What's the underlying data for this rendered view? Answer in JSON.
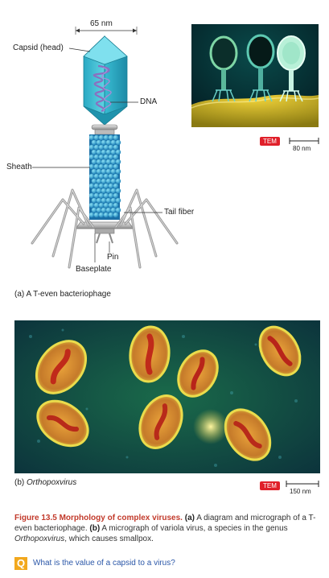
{
  "diagram_a": {
    "dimension_label": "65 nm",
    "labels": {
      "capsid": "Capsid (head)",
      "dna": "DNA",
      "sheath": "Sheath",
      "tail_fiber": "Tail fiber",
      "pin": "Pin",
      "baseplate": "Baseplate"
    },
    "part_title": "(a) A T-even bacteriophage"
  },
  "micrograph_a": {
    "tem_label": "TEM",
    "scale_label": "80 nm"
  },
  "micrograph_b": {
    "tem_label": "TEM",
    "scale_label": "150 nm",
    "part_prefix": "(b) ",
    "part_name": "Orthopoxvirus"
  },
  "caption": {
    "figure_number": "Figure 13.5",
    "title": "Morphology of complex viruses.",
    "a_marker": "(a)",
    "a_text": " A diagram and micrograph of a T-even bacteriophage. ",
    "b_marker": "(b)",
    "b_text": " A micrograph of variola virus, a species in the genus ",
    "genus": "Orthopoxvirus",
    "b_text_end": ", which causes smallpox."
  },
  "question": {
    "badge": "Q",
    "text": "What is the value of a capsid to a virus?"
  },
  "colors": {
    "capsid": "#3fc4d8",
    "sheath": "#2fa6cf",
    "caption_red": "#c23a2b",
    "question_blue": "#2b57a8",
    "q_badge": "#f2a81d",
    "tem_red": "#e0202a"
  }
}
